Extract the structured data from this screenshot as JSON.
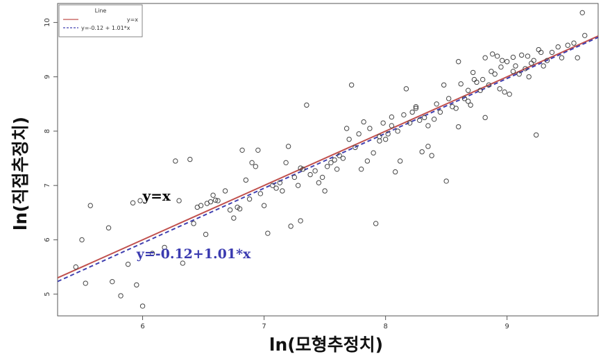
{
  "chart_data": {
    "type": "scatter",
    "xlabel": "ln(모형추정치)",
    "ylabel": "ln(직접추정치)",
    "xlim": [
      5.3,
      9.75
    ],
    "ylim": [
      4.6,
      10.35
    ],
    "x_ticks": [
      6,
      7,
      8,
      9
    ],
    "y_ticks": [
      5,
      6,
      7,
      8,
      9,
      10
    ],
    "grid": false,
    "legend": {
      "title": "Line",
      "placement": "top-left",
      "entries": [
        {
          "label": "y=x",
          "color": "#c0504d",
          "style": "solid"
        },
        {
          "label": "y=-0.12 + 1.01*x",
          "color": "#4040b0",
          "style": "dashed"
        }
      ]
    },
    "annotations": [
      {
        "text": "y=x",
        "x": 6.0,
        "y": 6.72,
        "color": "#000000"
      },
      {
        "text": "y=-0.12+1.01*x",
        "x": 5.95,
        "y": 5.66,
        "color": "#3a3ab0"
      }
    ],
    "lines": [
      {
        "name": "y=x",
        "intercept": 0,
        "slope": 1,
        "color": "#c0504d",
        "dash": false
      },
      {
        "name": "y=-0.12 + 1.01*x",
        "intercept": -0.12,
        "slope": 1.01,
        "color": "#4040b0",
        "dash": true
      }
    ],
    "series": [
      {
        "marker": "open-circle",
        "color": "#444444",
        "points": [
          [
            5.45,
            5.5
          ],
          [
            5.5,
            6.0
          ],
          [
            5.53,
            5.2
          ],
          [
            5.57,
            6.63
          ],
          [
            5.72,
            6.22
          ],
          [
            5.75,
            5.23
          ],
          [
            5.82,
            4.97
          ],
          [
            5.88,
            5.55
          ],
          [
            5.92,
            6.68
          ],
          [
            5.95,
            5.17
          ],
          [
            5.98,
            6.72
          ],
          [
            6.0,
            4.78
          ],
          [
            6.08,
            5.75
          ],
          [
            6.18,
            5.86
          ],
          [
            6.27,
            7.45
          ],
          [
            6.3,
            6.72
          ],
          [
            6.33,
            5.57
          ],
          [
            6.39,
            7.48
          ],
          [
            6.42,
            6.3
          ],
          [
            6.45,
            6.6
          ],
          [
            6.48,
            6.63
          ],
          [
            6.52,
            6.1
          ],
          [
            6.53,
            6.67
          ],
          [
            6.56,
            6.7
          ],
          [
            6.6,
            6.73
          ],
          [
            6.62,
            6.72
          ],
          [
            6.68,
            6.9
          ],
          [
            6.72,
            6.55
          ],
          [
            6.75,
            6.4
          ],
          [
            6.78,
            6.6
          ],
          [
            6.8,
            6.57
          ],
          [
            6.82,
            7.65
          ],
          [
            6.85,
            7.1
          ],
          [
            6.88,
            6.75
          ],
          [
            6.9,
            7.42
          ],
          [
            6.93,
            7.35
          ],
          [
            6.95,
            7.65
          ],
          [
            6.97,
            6.85
          ],
          [
            7.0,
            6.63
          ],
          [
            7.03,
            6.12
          ],
          [
            7.07,
            7.0
          ],
          [
            7.1,
            6.95
          ],
          [
            7.13,
            7.05
          ],
          [
            7.15,
            6.9
          ],
          [
            7.18,
            7.42
          ],
          [
            7.2,
            7.72
          ],
          [
            7.22,
            6.25
          ],
          [
            7.25,
            7.15
          ],
          [
            7.28,
            7.0
          ],
          [
            7.3,
            6.35
          ],
          [
            7.32,
            7.3
          ],
          [
            7.35,
            8.48
          ],
          [
            7.38,
            7.2
          ],
          [
            7.42,
            7.27
          ],
          [
            7.45,
            7.05
          ],
          [
            7.48,
            7.15
          ],
          [
            7.5,
            6.9
          ],
          [
            7.52,
            7.35
          ],
          [
            7.55,
            7.42
          ],
          [
            7.58,
            7.47
          ],
          [
            7.6,
            7.3
          ],
          [
            7.62,
            7.55
          ],
          [
            7.65,
            7.5
          ],
          [
            7.68,
            8.05
          ],
          [
            7.7,
            7.85
          ],
          [
            7.72,
            8.85
          ],
          [
            7.75,
            7.7
          ],
          [
            7.78,
            7.95
          ],
          [
            7.8,
            7.3
          ],
          [
            7.82,
            8.17
          ],
          [
            7.85,
            7.45
          ],
          [
            7.87,
            8.05
          ],
          [
            7.9,
            7.6
          ],
          [
            7.92,
            6.3
          ],
          [
            7.95,
            7.9
          ],
          [
            7.98,
            8.15
          ],
          [
            8.0,
            7.85
          ],
          [
            8.02,
            7.95
          ],
          [
            8.05,
            8.1
          ],
          [
            8.08,
            7.25
          ],
          [
            8.1,
            8.0
          ],
          [
            8.12,
            7.45
          ],
          [
            8.15,
            8.3
          ],
          [
            8.17,
            8.78
          ],
          [
            8.2,
            8.15
          ],
          [
            8.22,
            8.35
          ],
          [
            8.25,
            8.45
          ],
          [
            8.28,
            8.2
          ],
          [
            8.3,
            7.62
          ],
          [
            8.32,
            8.25
          ],
          [
            8.35,
            8.1
          ],
          [
            8.38,
            7.55
          ],
          [
            8.4,
            8.22
          ],
          [
            8.42,
            8.5
          ],
          [
            8.45,
            8.35
          ],
          [
            8.48,
            8.85
          ],
          [
            8.5,
            7.08
          ],
          [
            8.52,
            8.6
          ],
          [
            8.55,
            8.45
          ],
          [
            8.58,
            8.42
          ],
          [
            8.6,
            8.08
          ],
          [
            8.62,
            8.87
          ],
          [
            8.65,
            8.6
          ],
          [
            8.68,
            8.75
          ],
          [
            8.7,
            8.48
          ],
          [
            8.72,
            9.08
          ],
          [
            8.75,
            8.9
          ],
          [
            8.78,
            8.75
          ],
          [
            8.8,
            8.95
          ],
          [
            8.82,
            8.25
          ],
          [
            8.85,
            8.85
          ],
          [
            8.87,
            9.1
          ],
          [
            8.9,
            9.05
          ],
          [
            8.92,
            9.38
          ],
          [
            8.94,
            8.78
          ],
          [
            8.96,
            9.3
          ],
          [
            8.98,
            8.72
          ],
          [
            9.0,
            9.28
          ],
          [
            9.02,
            8.68
          ],
          [
            9.05,
            9.1
          ],
          [
            9.07,
            9.2
          ],
          [
            9.1,
            9.05
          ],
          [
            9.12,
            9.4
          ],
          [
            9.15,
            9.15
          ],
          [
            9.17,
            9.38
          ],
          [
            9.2,
            9.25
          ],
          [
            9.22,
            9.3
          ],
          [
            9.24,
            7.93
          ],
          [
            9.26,
            9.5
          ],
          [
            9.28,
            9.45
          ],
          [
            9.3,
            9.2
          ],
          [
            9.33,
            9.3
          ],
          [
            9.37,
            9.45
          ],
          [
            9.42,
            9.55
          ],
          [
            9.45,
            9.35
          ],
          [
            9.5,
            9.58
          ],
          [
            9.55,
            9.62
          ],
          [
            9.58,
            9.35
          ],
          [
            9.62,
            10.18
          ],
          [
            9.64,
            9.76
          ],
          [
            8.6,
            9.28
          ],
          [
            8.73,
            8.95
          ],
          [
            8.88,
            9.42
          ],
          [
            9.05,
            9.36
          ],
          [
            8.68,
            8.55
          ],
          [
            8.95,
            9.18
          ],
          [
            8.35,
            7.72
          ],
          [
            8.25,
            8.42
          ],
          [
            7.3,
            7.32
          ],
          [
            6.58,
            6.82
          ],
          [
            8.05,
            8.26
          ],
          [
            7.95,
            7.82
          ],
          [
            9.18,
            9.0
          ],
          [
            8.82,
            9.35
          ]
        ]
      }
    ]
  }
}
